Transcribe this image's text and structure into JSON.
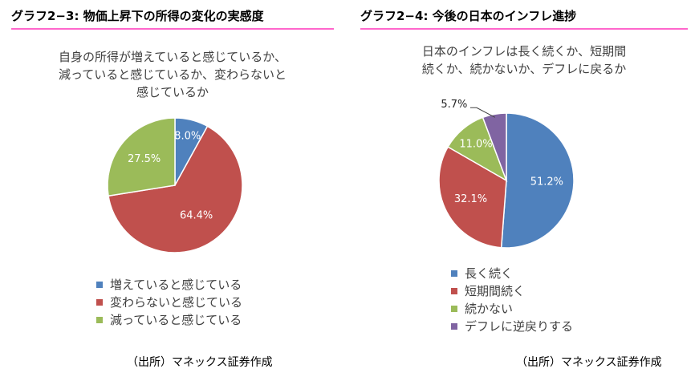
{
  "colors": {
    "blue": "#4f81bd",
    "red": "#c0504d",
    "green": "#9bbb59",
    "purple": "#8064a2",
    "header_underline": "#ff66cc"
  },
  "left": {
    "header": "グラフ2−3: 物価上昇下の所得の変化の実感度",
    "subtitle_lines": [
      "自身の所得が増えていると感じているか、",
      "減っていると感じているか、変わらないと",
      "感じているか"
    ],
    "source": "（出所）マネックス証券作成"
  },
  "right": {
    "header": "グラフ2−4: 今後の日本のインフレ進捗",
    "subtitle_lines": [
      "日本のインフレは長く続くか、短期間",
      "続くか、続かないか、デフレに戻るか"
    ],
    "source": "（出所）マネックス証券作成"
  },
  "chart_data": [
    {
      "type": "pie",
      "title": "自身の所得が増えていると感じているか、減っていると感じているか、変わらないと感じているか",
      "categories": [
        "増えていると感じている",
        "変わらないと感じている",
        "減っていると感じている"
      ],
      "values": [
        8.0,
        64.4,
        27.5
      ],
      "labels": [
        "8.0%",
        "64.4%",
        "27.5%"
      ],
      "colors": [
        "#4f81bd",
        "#c0504d",
        "#9bbb59"
      ],
      "legend_position": "bottom"
    },
    {
      "type": "pie",
      "title": "日本のインフレは長く続くか、短期間続くか、続かないか、デフレに戻るか",
      "categories": [
        "長く続く",
        "短期間続く",
        "続かない",
        "デフレに逆戻りする"
      ],
      "values": [
        51.2,
        32.1,
        11.0,
        5.7
      ],
      "labels": [
        "51.2%",
        "32.1%",
        "11.0%",
        "5.7%"
      ],
      "colors": [
        "#4f81bd",
        "#c0504d",
        "#9bbb59",
        "#8064a2"
      ],
      "legend_position": "bottom"
    }
  ]
}
